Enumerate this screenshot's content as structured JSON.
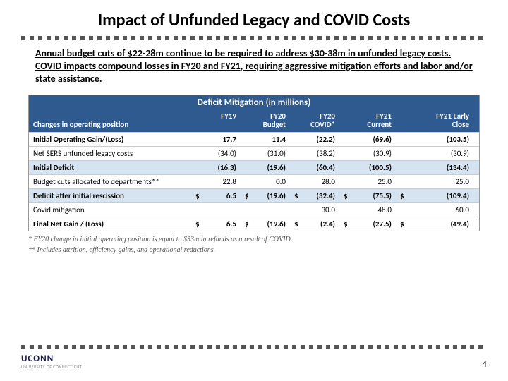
{
  "title": "Impact of Unfunded Legacy and COVID Costs",
  "subtitle": "Annual budget cuts of $22-28m continue to be required to address $30-38m in unfunded legacy costs. COVID impacts compound losses in FY20 and FY21, requiring aggressive mitigation efforts and labor and/or state assistance.",
  "table": {
    "banner": "Deficit Mitigation (in millions)",
    "header_left": "Changes in operating position",
    "cols": [
      "FY19",
      "FY20\nBudget",
      "FY20\nCOVID*",
      "FY21\nCurrent",
      "FY21 Early\nClose"
    ],
    "rows": [
      {
        "label": "Initial Operating Gain/(Loss)",
        "bold": true,
        "bg": "white",
        "vals": [
          "17.7",
          "11.4",
          "(22.2)",
          "(69.6)",
          "(103.5)"
        ]
      },
      {
        "label": "Net SERS unfunded legacy costs",
        "bold": false,
        "bg": "white",
        "vals": [
          "(34.0)",
          "(31.0)",
          "(38.2)",
          "(30.9)",
          "(30.9)"
        ]
      },
      {
        "label": "Initial Deficit",
        "bold": true,
        "bg": "blue",
        "vals": [
          "(16.3)",
          "(19.6)",
          "(60.4)",
          "(100.5)",
          "(134.4)"
        ]
      },
      {
        "label": "Budget cuts allocated to departments**",
        "bold": false,
        "bg": "white",
        "vals": [
          "22.8",
          "0.0",
          "28.0",
          "25.0",
          "25.0"
        ]
      },
      {
        "label": "Deficit after initial rescission",
        "bold": true,
        "bg": "blue",
        "dollar": true,
        "vals": [
          "6.5",
          "(19.6)",
          "(32.4)",
          "(75.5)",
          "(109.4)"
        ]
      },
      {
        "label": "Covid mitigation",
        "bold": false,
        "bg": "white",
        "vals": [
          "",
          "",
          "30.0",
          "48.0",
          "60.0"
        ]
      },
      {
        "label": "Final Net Gain / (Loss)",
        "bold": true,
        "bg": "total",
        "dollar": true,
        "vals": [
          "6.5",
          "(19.6)",
          "(2.4)",
          "(27.5)",
          "(49.4)"
        ]
      }
    ]
  },
  "footnotes": [
    "* FY20 change in initial operating position is equal to $33m in refunds as a result of COVID.",
    "** Includes attrition, efficiency gains, and operational reductions."
  ],
  "logo": "UCONN",
  "pagenum": "4",
  "colors": {
    "header_bg": "#2f5a8f",
    "blue_row": "#d6e4f2"
  }
}
